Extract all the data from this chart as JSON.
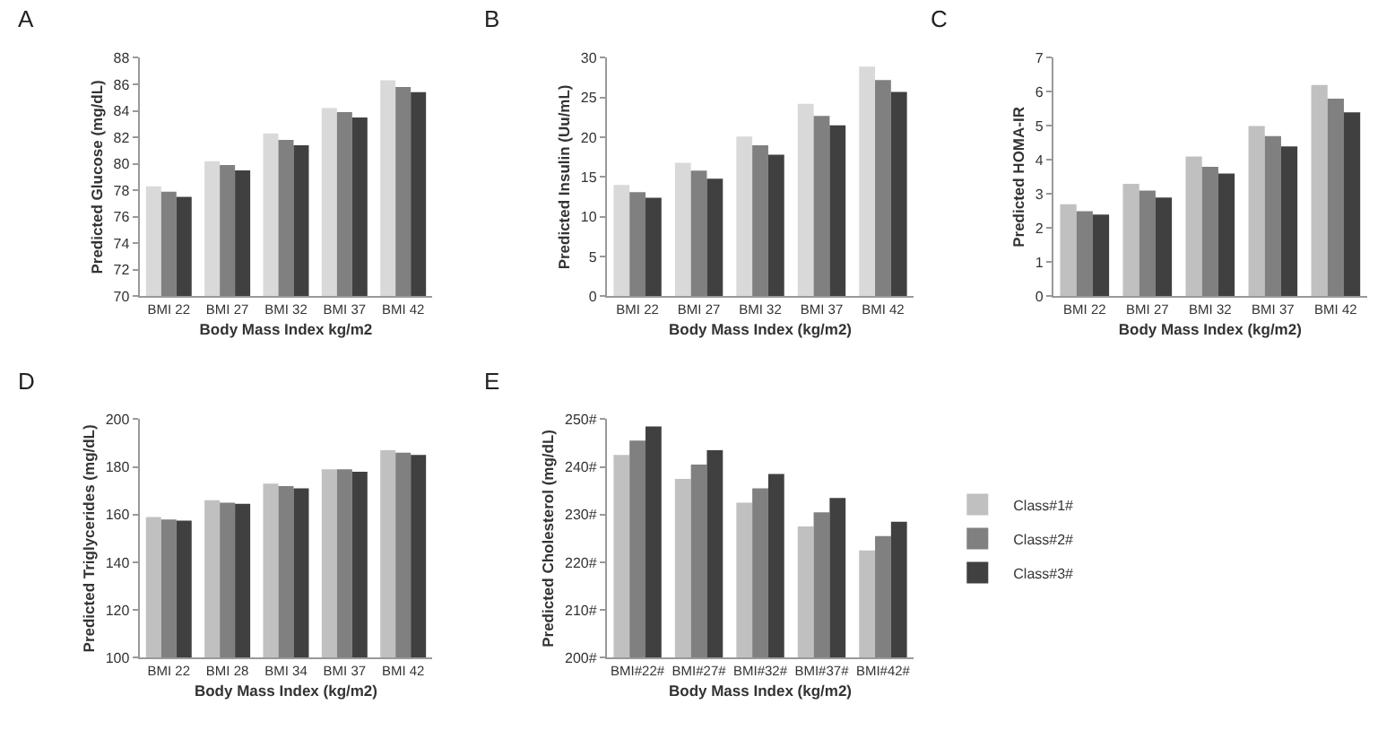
{
  "chart_data": [
    {
      "type": "bar",
      "title": "A",
      "xlabel": "Body Mass Index kg/m2",
      "ylabel": "Predicted Glucose (mg/dL)",
      "categories": [
        "BMI 22",
        "BMI 27",
        "BMI 32",
        "BMI 37",
        "BMI 42"
      ],
      "ylim": [
        70,
        88
      ],
      "yticks": [
        70,
        72,
        74,
        76,
        78,
        80,
        82,
        84,
        86,
        88
      ],
      "series": [
        {
          "color": "#d9d9d9",
          "values": [
            78.3,
            80.2,
            82.3,
            84.2,
            86.3
          ]
        },
        {
          "color": "#808080",
          "values": [
            77.9,
            79.9,
            81.8,
            83.9,
            85.8
          ]
        },
        {
          "color": "#404040",
          "values": [
            77.5,
            79.5,
            81.4,
            83.5,
            85.4
          ]
        }
      ]
    },
    {
      "type": "bar",
      "title": "B",
      "xlabel": "Body Mass Index (kg/m2)",
      "ylabel": "Predicted Insulin (Uu/mL)",
      "categories": [
        "BMI 22",
        "BMI 27",
        "BMI 32",
        "BMI 37",
        "BMI 42"
      ],
      "ylim": [
        0,
        30
      ],
      "yticks": [
        0,
        5,
        10,
        15,
        20,
        25,
        30
      ],
      "series": [
        {
          "color": "#d9d9d9",
          "values": [
            14.0,
            16.8,
            20.1,
            24.2,
            28.9
          ]
        },
        {
          "color": "#808080",
          "values": [
            13.1,
            15.8,
            19.0,
            22.7,
            27.2
          ]
        },
        {
          "color": "#404040",
          "values": [
            12.4,
            14.8,
            17.8,
            21.5,
            25.7
          ]
        }
      ]
    },
    {
      "type": "bar",
      "title": "C",
      "xlabel": "Body Mass Index (kg/m2)",
      "ylabel": "Predicted HOMA-IR",
      "categories": [
        "BMI 22",
        "BMI 27",
        "BMI 32",
        "BMI 37",
        "BMI 42"
      ],
      "ylim": [
        0,
        7
      ],
      "yticks": [
        0,
        1,
        2,
        3,
        4,
        5,
        6,
        7
      ],
      "series": [
        {
          "color": "#c0c0c0",
          "values": [
            2.7,
            3.3,
            4.1,
            5.0,
            6.2
          ]
        },
        {
          "color": "#808080",
          "values": [
            2.5,
            3.1,
            3.8,
            4.7,
            5.8
          ]
        },
        {
          "color": "#404040",
          "values": [
            2.4,
            2.9,
            3.6,
            4.4,
            5.4
          ]
        }
      ]
    },
    {
      "type": "bar",
      "title": "D",
      "xlabel": "Body Mass Index (kg/m2)",
      "ylabel": "Predicted Triglycerides (mg/dL)",
      "categories": [
        "BMI 22",
        "BMI 28",
        "BMI 34",
        "BMI 37",
        "BMI 42"
      ],
      "ylim": [
        100,
        200
      ],
      "yticks": [
        100,
        120,
        140,
        160,
        180,
        200
      ],
      "series": [
        {
          "color": "#c0c0c0",
          "values": [
            159,
            166,
            173,
            179,
            187
          ]
        },
        {
          "color": "#808080",
          "values": [
            158,
            165,
            172,
            179,
            186
          ]
        },
        {
          "color": "#404040",
          "values": [
            157.5,
            164.5,
            171,
            178,
            185
          ]
        }
      ]
    },
    {
      "type": "bar",
      "title": "E",
      "xlabel": "Body Mass Index (kg/m2)",
      "ylabel": "Predicted Cholesterol (mg/dL)",
      "categories": [
        "BMI#22#",
        "BMI#27#",
        "BMI#32#",
        "BMI#37#",
        "BMI#42#"
      ],
      "ylim": [
        200,
        250
      ],
      "yticks": [
        {
          "value": 200,
          "label": "200#"
        },
        {
          "value": 210,
          "label": "210#"
        },
        {
          "value": 220,
          "label": "220#"
        },
        {
          "value": 230,
          "label": "230#"
        },
        {
          "value": 240,
          "label": "240#"
        },
        {
          "value": 250,
          "label": "250#"
        }
      ],
      "legend": "right",
      "series": [
        {
          "name": "Class#1#",
          "color": "#c0c0c0",
          "values": [
            242.5,
            237.5,
            232.5,
            227.5,
            222.5
          ]
        },
        {
          "name": "Class#2#",
          "color": "#808080",
          "values": [
            245.5,
            240.5,
            235.5,
            230.5,
            225.5
          ]
        },
        {
          "name": "Class#3#",
          "color": "#404040",
          "values": [
            248.5,
            243.5,
            238.5,
            233.5,
            228.5
          ]
        }
      ]
    }
  ]
}
